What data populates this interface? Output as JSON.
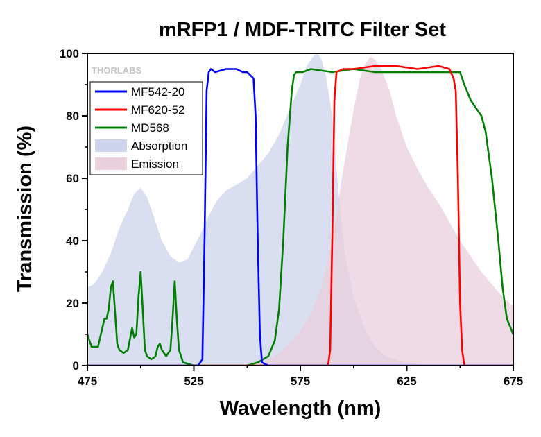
{
  "chart_data": {
    "type": "area",
    "title": "mRFP1 / MDF-TRITC Filter Set",
    "xlabel": "Wavelength (nm)",
    "ylabel": "Transmission (%)",
    "xlim": [
      475,
      675
    ],
    "ylim": [
      0,
      100
    ],
    "x_ticks": [
      475,
      525,
      575,
      625,
      675
    ],
    "y_ticks": [
      0,
      20,
      40,
      60,
      80,
      100
    ],
    "grid": false,
    "legend_position": "top-left",
    "logo_text": "THORLABS",
    "series": [
      {
        "name": "MF542-20",
        "kind": "line",
        "color": "#0000ff",
        "x": [
          475,
          527,
          529,
          530,
          531,
          532,
          533,
          535,
          540,
          545,
          548,
          550,
          553,
          554,
          555,
          556,
          557,
          560,
          675
        ],
        "y": [
          0,
          0,
          2,
          40,
          88,
          94,
          95,
          94,
          95,
          95,
          94,
          94,
          92,
          80,
          40,
          10,
          1,
          0,
          0
        ]
      },
      {
        "name": "MF620-52",
        "kind": "line",
        "color": "#ff0000",
        "x": [
          475,
          588,
          589,
          590,
          591,
          592,
          595,
          600,
          610,
          620,
          630,
          640,
          645,
          647,
          648,
          649,
          650,
          651,
          652,
          655,
          675
        ],
        "y": [
          0,
          0,
          5,
          40,
          85,
          94,
          95,
          95,
          96,
          96,
          95,
          96,
          95,
          92,
          88,
          60,
          20,
          5,
          0,
          0,
          0
        ]
      },
      {
        "name": "MD568",
        "kind": "line",
        "color": "#008000",
        "x": [
          475,
          477,
          480,
          482,
          483,
          484,
          485,
          486,
          487,
          488,
          489,
          490,
          492,
          494,
          496,
          497,
          498,
          499,
          500,
          501,
          502,
          503,
          505,
          507,
          508,
          509,
          510,
          512,
          514,
          515,
          516,
          517,
          518,
          520,
          525,
          530,
          540,
          550,
          555,
          560,
          563,
          565,
          567,
          569,
          571,
          572,
          573,
          574,
          576,
          580,
          590,
          600,
          610,
          620,
          630,
          640,
          650,
          652,
          655,
          658,
          660,
          662,
          665,
          668,
          670,
          672,
          675
        ],
        "y": [
          10,
          6,
          6,
          12,
          15,
          15,
          18,
          25,
          27,
          17,
          7,
          5,
          4,
          5,
          12,
          9,
          10,
          22,
          30,
          18,
          5,
          3,
          2,
          3,
          6,
          7,
          5,
          3,
          5,
          15,
          27,
          15,
          5,
          1,
          0,
          0,
          0,
          0,
          1,
          3,
          8,
          18,
          40,
          70,
          88,
          93,
          94,
          94,
          94,
          95,
          94,
          95,
          94,
          94,
          94,
          94,
          94,
          90,
          85,
          82,
          80,
          75,
          60,
          40,
          25,
          15,
          10
        ]
      },
      {
        "name": "Absorption",
        "kind": "area",
        "color": "#ccd4ec",
        "x": [
          475,
          478,
          482,
          486,
          490,
          494,
          497,
          500,
          503,
          506,
          510,
          514,
          518,
          522,
          525,
          528,
          532,
          536,
          540,
          545,
          550,
          555,
          560,
          565,
          570,
          575,
          578,
          581,
          583,
          585,
          587,
          590,
          593,
          596,
          600,
          605,
          610,
          615,
          620,
          625,
          630,
          635,
          675
        ],
        "y": [
          25,
          26,
          30,
          36,
          44,
          50,
          55,
          57,
          54,
          48,
          40,
          35,
          33,
          34,
          38,
          42,
          48,
          53,
          56,
          58,
          60,
          64,
          68,
          74,
          82,
          90,
          96,
          99,
          100,
          98,
          93,
          80,
          55,
          35,
          22,
          12,
          6,
          3,
          2,
          1,
          0.5,
          0,
          0
        ]
      },
      {
        "name": "Emission",
        "kind": "area",
        "color": "#eacfdc",
        "x": [
          475,
          550,
          555,
          560,
          565,
          570,
          575,
          580,
          585,
          590,
          595,
          600,
          603,
          605,
          608,
          610,
          613,
          617,
          620,
          625,
          630,
          635,
          640,
          645,
          650,
          655,
          660,
          665,
          670,
          675
        ],
        "y": [
          0,
          0,
          1,
          2,
          4,
          7,
          11,
          17,
          25,
          40,
          62,
          82,
          92,
          96,
          99,
          98,
          95,
          88,
          80,
          70,
          63,
          57,
          52,
          46,
          40,
          35,
          30,
          26,
          22,
          19
        ]
      }
    ]
  }
}
